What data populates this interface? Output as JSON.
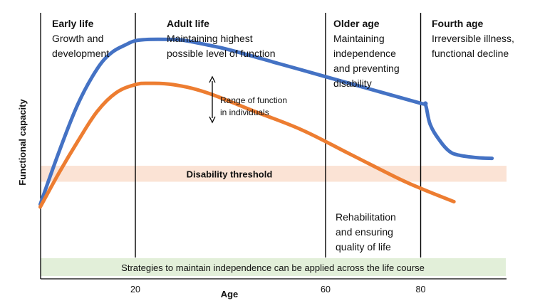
{
  "chart_data": {
    "type": "line",
    "xlabel": "Age",
    "ylabel": "Functional capacity",
    "xlim": [
      0,
      98
    ],
    "x_ticks": [
      20,
      60,
      80
    ],
    "phase_boundaries": [
      20,
      60,
      80
    ],
    "phases": [
      {
        "title": "Early life",
        "description": [
          "Growth and",
          "development"
        ]
      },
      {
        "title": "Adult life",
        "description": [
          "Maintaining highest",
          "possible level of function"
        ]
      },
      {
        "title": "Older age",
        "description": [
          "Maintaining",
          "independence",
          "and preventing",
          "disability"
        ]
      },
      {
        "title": "Fourth age",
        "description": [
          "Irreversible illness,",
          "functional decline"
        ]
      }
    ],
    "series": [
      {
        "color": "#4472c4",
        "x": [
          0,
          4,
          8,
          12,
          15,
          18,
          20,
          23,
          27,
          30,
          35,
          40,
          50,
          60,
          70,
          80,
          81,
          82,
          84,
          86,
          88,
          92,
          95
        ],
        "y": [
          28,
          48,
          66,
          79,
          85,
          88,
          89.5,
          90,
          90,
          89.7,
          88,
          86,
          81,
          76,
          71,
          66,
          65.5,
          58,
          52,
          48,
          46.5,
          45.5,
          45.3
        ]
      },
      {
        "color": "#ed7d31",
        "x": [
          0,
          4,
          8,
          12,
          16,
          20,
          23,
          28,
          35,
          45,
          55,
          65,
          75,
          80,
          87
        ],
        "y": [
          27,
          40,
          52,
          63,
          70,
          73,
          73.5,
          73,
          70,
          63,
          56,
          47,
          38,
          34,
          29
        ]
      }
    ],
    "disability_threshold": {
      "label": "Disability threshold",
      "y_range": [
        36.5,
        42.5
      ],
      "color": "#fbe3d5"
    },
    "strategies_band": {
      "label": "Strategies to maintain independence can be applied across the life course",
      "color": "#e2efd9"
    },
    "annotations": {
      "range": {
        "text": [
          "Range of function",
          "in individuals"
        ],
        "x": 36
      },
      "rehab": {
        "text": [
          "Rehabilitation",
          "and ensuring",
          "quality of life"
        ]
      }
    }
  }
}
